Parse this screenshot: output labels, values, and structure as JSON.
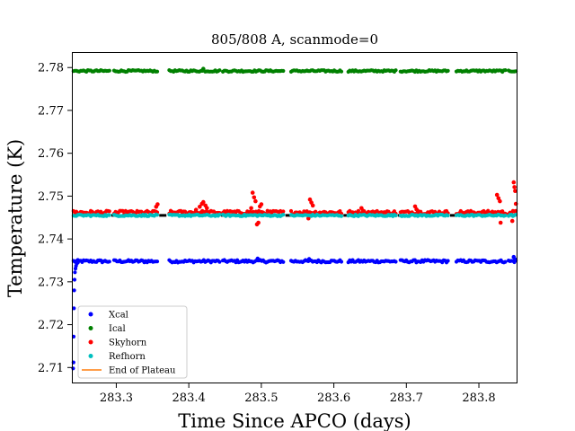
{
  "chart_data": {
    "type": "scatter",
    "title": "805/808 A, scanmode=0",
    "xlabel": "Time Since APCO (days)",
    "ylabel": "Temperature (K)",
    "xlim": [
      283.24,
      283.852
    ],
    "ylim": [
      2.7065,
      2.7834
    ],
    "xticks": [
      283.3,
      283.4,
      283.5,
      283.6,
      283.7,
      283.8
    ],
    "xtick_labels": [
      "283.3",
      "283.4",
      "283.5",
      "283.6",
      "283.7",
      "283.8"
    ],
    "yticks": [
      2.71,
      2.72,
      2.73,
      2.74,
      2.75,
      2.76,
      2.77,
      2.78
    ],
    "ytick_labels": [
      "2.71",
      "2.72",
      "2.73",
      "2.74",
      "2.75",
      "2.76",
      "2.77",
      "2.78"
    ],
    "legend_position": "lower-left",
    "grid": false,
    "plateau_value": 2.7455,
    "segments": [
      [
        283.241,
        283.292
      ],
      [
        283.297,
        283.358
      ],
      [
        283.373,
        283.443
      ],
      [
        283.447,
        283.532
      ],
      [
        283.541,
        283.612
      ],
      [
        283.62,
        283.687
      ],
      [
        283.692,
        283.759
      ],
      [
        283.769,
        283.838
      ],
      [
        283.841,
        283.852
      ]
    ],
    "series": [
      {
        "name": "Xcal",
        "color": "#0000ff",
        "marker": "dot",
        "level": 2.7348,
        "jitter": 0.0003,
        "transient": {
          "x": [
            283.2405,
            283.241,
            283.2413,
            283.2416,
            283.242,
            283.2425,
            283.243,
            283.2437,
            283.2445,
            283.2455,
            283.247
          ],
          "y": [
            2.7098,
            2.7112,
            2.7172,
            2.7238,
            2.728,
            2.7305,
            2.7322,
            2.7331,
            2.7337,
            2.7342,
            2.7345
          ]
        },
        "excursions": {
          "x": [
            283.495,
            283.566,
            283.848,
            283.85
          ],
          "y": [
            2.7354,
            2.7353,
            2.7358,
            2.7352
          ]
        }
      },
      {
        "name": "Ical",
        "color": "#008000",
        "marker": "dot",
        "level": 2.7792,
        "jitter": 0.0002,
        "transient": {
          "x": [],
          "y": []
        },
        "excursions": {
          "x": [
            283.42
          ],
          "y": [
            2.7797
          ]
        }
      },
      {
        "name": "Skyhorn",
        "color": "#ff0000",
        "marker": "dot",
        "level": 2.7462,
        "jitter": 0.0004,
        "transient": {
          "x": [],
          "y": []
        },
        "excursions": {
          "x": [
            283.41,
            283.415,
            283.418,
            283.42,
            283.423,
            283.425,
            283.355,
            283.357,
            283.488,
            283.49,
            283.492,
            283.494,
            283.496,
            283.498,
            283.5,
            283.486,
            283.567,
            283.569,
            283.571,
            283.565,
            283.638,
            283.64,
            283.712,
            283.714,
            283.716,
            283.825,
            283.827,
            283.829,
            283.83,
            283.848,
            283.849,
            283.85,
            283.851,
            283.846
          ],
          "y": [
            2.7468,
            2.7475,
            2.7482,
            2.7486,
            2.7478,
            2.7472,
            2.7475,
            2.7481,
            2.7508,
            2.7497,
            2.7488,
            2.7434,
            2.7438,
            2.7476,
            2.7481,
            2.7472,
            2.7492,
            2.7485,
            2.7478,
            2.7448,
            2.7472,
            2.7466,
            2.7476,
            2.7469,
            2.7465,
            2.7503,
            2.7495,
            2.7488,
            2.7438,
            2.7532,
            2.7521,
            2.7512,
            2.7482,
            2.7442
          ]
        }
      },
      {
        "name": "Refhorn",
        "color": "#00bfbf",
        "marker": "dot",
        "level": 2.7455,
        "jitter": 0.0002,
        "transient": {
          "x": [],
          "y": []
        },
        "excursions": {
          "x": [],
          "y": []
        }
      },
      {
        "name": "End of Plateau",
        "color": "#ff7f0e",
        "marker": "line",
        "level": null,
        "jitter": 0,
        "transient": {
          "x": [],
          "y": []
        },
        "excursions": {
          "x": [],
          "y": []
        }
      }
    ]
  }
}
